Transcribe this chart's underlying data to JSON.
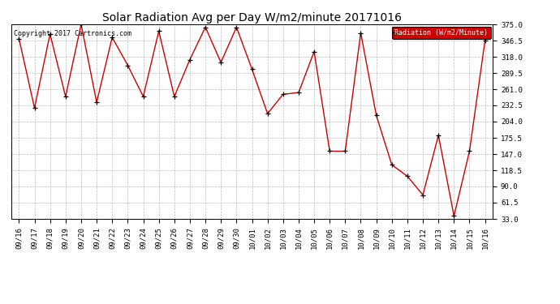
{
  "title": "Solar Radiation Avg per Day W/m2/minute 20171016",
  "copyright": "Copyright 2017 Cartronics.com",
  "legend_label": "Radiation (W/m2/Minute)",
  "dates": [
    "09/16",
    "09/17",
    "09/18",
    "09/19",
    "09/20",
    "09/21",
    "09/22",
    "09/23",
    "09/24",
    "09/25",
    "09/26",
    "09/27",
    "09/28",
    "09/29",
    "09/30",
    "10/01",
    "10/02",
    "10/03",
    "10/04",
    "10/05",
    "10/06",
    "10/07",
    "10/08",
    "10/09",
    "10/10",
    "10/11",
    "10/12",
    "10/13",
    "10/14",
    "10/15",
    "10/16"
  ],
  "values": [
    350,
    228,
    358,
    248,
    375,
    238,
    352,
    303,
    248,
    363,
    248,
    313,
    370,
    308,
    370,
    296,
    218,
    252,
    255,
    327,
    152,
    152,
    360,
    215,
    128,
    108,
    75,
    180,
    38,
    152,
    347
  ],
  "line_color": "#cc0000",
  "marker_color": "#000000",
  "background_color": "#ffffff",
  "grid_color": "#bbbbbb",
  "yticks": [
    33.0,
    61.5,
    90.0,
    118.5,
    147.0,
    175.5,
    204.0,
    232.5,
    261.0,
    289.5,
    318.0,
    346.5,
    375.0
  ],
  "ylim": [
    33.0,
    375.0
  ],
  "legend_bg": "#cc0000",
  "legend_text_color": "#ffffff",
  "title_fontsize": 10,
  "axis_fontsize": 6.5,
  "copyright_fontsize": 6
}
